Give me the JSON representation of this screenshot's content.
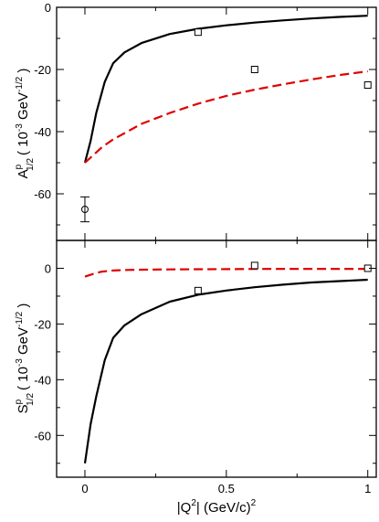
{
  "chart_data": [
    {
      "type": "line",
      "panel": "top",
      "ylabel": {
        "main": "A",
        "sup": "p",
        "sub": "1/2",
        "unit_open": "( 10",
        "unit_exp": "-3",
        "unit_mid": " GeV",
        "unit_exp2": "-1/2",
        "unit_close": " )"
      },
      "xlim": [
        -0.1,
        1.03
      ],
      "ylim": [
        -75,
        0
      ],
      "yticks": [
        0,
        -20,
        -40,
        -60
      ],
      "ytick_labels": [
        "0",
        "-20",
        "-40",
        "-60"
      ],
      "series": [
        {
          "style": "solid",
          "color": "#000000",
          "x": [
            0,
            0.02,
            0.04,
            0.07,
            0.1,
            0.14,
            0.2,
            0.3,
            0.4,
            0.5,
            0.6,
            0.7,
            0.8,
            0.9,
            1.0
          ],
          "y": [
            -50,
            -43,
            -34,
            -24,
            -18,
            -14.5,
            -11.5,
            -8.6,
            -6.9,
            -5.8,
            -4.9,
            -4.2,
            -3.6,
            -3.1,
            -2.7
          ]
        },
        {
          "style": "dashed",
          "color": "#e00000",
          "x": [
            0,
            0.03,
            0.06,
            0.1,
            0.15,
            0.2,
            0.3,
            0.4,
            0.5,
            0.6,
            0.7,
            0.8,
            0.9,
            1.0
          ],
          "y": [
            -50,
            -47.5,
            -45,
            -42.5,
            -40,
            -37.5,
            -34,
            -31,
            -28.5,
            -26.5,
            -24.8,
            -23.2,
            -21.8,
            -20.6
          ]
        }
      ],
      "points": [
        {
          "marker": "square",
          "x": 0.4,
          "y": -8
        },
        {
          "marker": "square",
          "x": 0.6,
          "y": -20
        },
        {
          "marker": "square",
          "x": 1.0,
          "y": -25
        },
        {
          "marker": "circle",
          "x": 0.0,
          "y": -65,
          "yerr": 4
        }
      ]
    },
    {
      "type": "line",
      "panel": "bottom",
      "ylabel": {
        "main": "S",
        "sup": "p",
        "sub": "1/2",
        "unit_open": "( 10",
        "unit_exp": "-3",
        "unit_mid": " GeV",
        "unit_exp2": "-1/2",
        "unit_close": " )"
      },
      "xlabel": {
        "open": "|Q",
        "sup": "2",
        "close": "| (GeV/c)",
        "sup2": "2"
      },
      "xlim": [
        -0.1,
        1.03
      ],
      "ylim": [
        -75,
        10
      ],
      "xticks": [
        0,
        0.5,
        1
      ],
      "xtick_labels": [
        "0",
        "0.5",
        "1"
      ],
      "yticks": [
        0,
        -20,
        -40,
        -60
      ],
      "ytick_labels": [
        "0",
        "-20",
        "-40",
        "-60"
      ],
      "series": [
        {
          "style": "solid",
          "color": "#000000",
          "x": [
            0,
            0.02,
            0.04,
            0.07,
            0.1,
            0.14,
            0.2,
            0.3,
            0.4,
            0.5,
            0.6,
            0.7,
            0.8,
            0.9,
            1.0
          ],
          "y": [
            -70,
            -56,
            -46,
            -33,
            -25,
            -20.5,
            -16.5,
            -12,
            -9.5,
            -8,
            -6.8,
            -5.9,
            -5.1,
            -4.6,
            -4.1
          ]
        },
        {
          "style": "dashed",
          "color": "#e00000",
          "x": [
            0,
            0.03,
            0.06,
            0.1,
            0.15,
            0.2,
            0.3,
            0.4,
            0.5,
            0.6,
            0.7,
            0.8,
            0.9,
            1.0
          ],
          "y": [
            -3,
            -2,
            -1.2,
            -0.8,
            -0.6,
            -0.5,
            -0.4,
            -0.35,
            -0.3,
            -0.25,
            -0.2,
            -0.2,
            -0.2,
            -0.2
          ]
        }
      ],
      "points": [
        {
          "marker": "square",
          "x": 0.4,
          "y": -8
        },
        {
          "marker": "square",
          "x": 0.6,
          "y": 1
        },
        {
          "marker": "square",
          "x": 1.0,
          "y": 0
        }
      ]
    }
  ]
}
